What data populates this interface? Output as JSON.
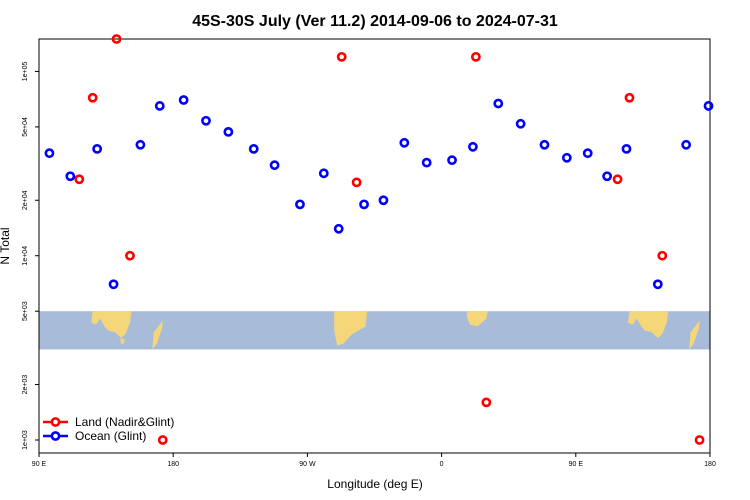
{
  "chart_data": {
    "type": "scatter",
    "title": "45S-30S July (Ver 11.2)   2014-09-06 to 2024-07-31",
    "xlabel": "Longitude (deg E)",
    "ylabel": "N Total",
    "x_axis": {
      "range_deg_east_unwrapped": [
        90,
        540
      ],
      "ticks": [
        {
          "value": 90,
          "label": "90 E"
        },
        {
          "value": 180,
          "label": "180"
        },
        {
          "value": 270,
          "label": "90 W"
        },
        {
          "value": 360,
          "label": "0"
        },
        {
          "value": 450,
          "label": "90 E"
        },
        {
          "value": 540,
          "label": "180"
        }
      ]
    },
    "y_axis": {
      "scale": "log",
      "range": [
        850,
        150000
      ],
      "ticks": [
        {
          "value": 1000,
          "label": "1e+03"
        },
        {
          "value": 2000,
          "label": "2e+03"
        },
        {
          "value": 5000,
          "label": "5e+03"
        },
        {
          "value": 10000,
          "label": "1e+04"
        },
        {
          "value": 20000,
          "label": "2e+04"
        },
        {
          "value": 50000,
          "label": "5e+04"
        },
        {
          "value": 100000,
          "label": "1e+05"
        }
      ]
    },
    "map_band": {
      "y_range": [
        3100,
        5000
      ],
      "ocean_color": "#a8bcd9",
      "land_color": "#f5d77a"
    },
    "legend": {
      "position": "bottom-left",
      "entries": [
        {
          "label": "Land (Nadir&Glint)",
          "color": "#ff0000"
        },
        {
          "label": "Ocean (Glint)",
          "color": "#0000ff"
        }
      ]
    },
    "series": [
      {
        "name": "Land (Nadir&Glint)",
        "color": "#ff0000",
        "points": [
          {
            "x": 117,
            "y": 26000
          },
          {
            "x": 126,
            "y": 72000
          },
          {
            "x": 142,
            "y": 150000
          },
          {
            "x": 151,
            "y": 10000
          },
          {
            "x": 173,
            "y": 1000
          },
          {
            "x": 293,
            "y": 120000
          },
          {
            "x": 303,
            "y": 25000
          },
          {
            "x": 383,
            "y": 120000
          },
          {
            "x": 390,
            "y": 1600
          },
          {
            "x": 478,
            "y": 26000
          },
          {
            "x": 486,
            "y": 72000
          },
          {
            "x": 508,
            "y": 10000
          },
          {
            "x": 533,
            "y": 1000
          }
        ]
      },
      {
        "name": "Ocean (Glint)",
        "color": "#0000ff",
        "points": [
          {
            "x": 97,
            "y": 36000
          },
          {
            "x": 111,
            "y": 27000
          },
          {
            "x": 129,
            "y": 38000
          },
          {
            "x": 140,
            "y": 7000
          },
          {
            "x": 158,
            "y": 40000
          },
          {
            "x": 171,
            "y": 65000
          },
          {
            "x": 187,
            "y": 70000
          },
          {
            "x": 202,
            "y": 54000
          },
          {
            "x": 217,
            "y": 47000
          },
          {
            "x": 234,
            "y": 38000
          },
          {
            "x": 248,
            "y": 31000
          },
          {
            "x": 265,
            "y": 19000
          },
          {
            "x": 281,
            "y": 28000
          },
          {
            "x": 291,
            "y": 14000
          },
          {
            "x": 308,
            "y": 19000
          },
          {
            "x": 321,
            "y": 20000
          },
          {
            "x": 335,
            "y": 41000
          },
          {
            "x": 350,
            "y": 32000
          },
          {
            "x": 367,
            "y": 33000
          },
          {
            "x": 381,
            "y": 39000
          },
          {
            "x": 398,
            "y": 67000
          },
          {
            "x": 413,
            "y": 52000
          },
          {
            "x": 429,
            "y": 40000
          },
          {
            "x": 444,
            "y": 34000
          },
          {
            "x": 458,
            "y": 36000
          },
          {
            "x": 471,
            "y": 27000
          },
          {
            "x": 484,
            "y": 38000
          },
          {
            "x": 505,
            "y": 7000
          },
          {
            "x": 524,
            "y": 40000
          },
          {
            "x": 539,
            "y": 65000
          }
        ]
      }
    ]
  }
}
